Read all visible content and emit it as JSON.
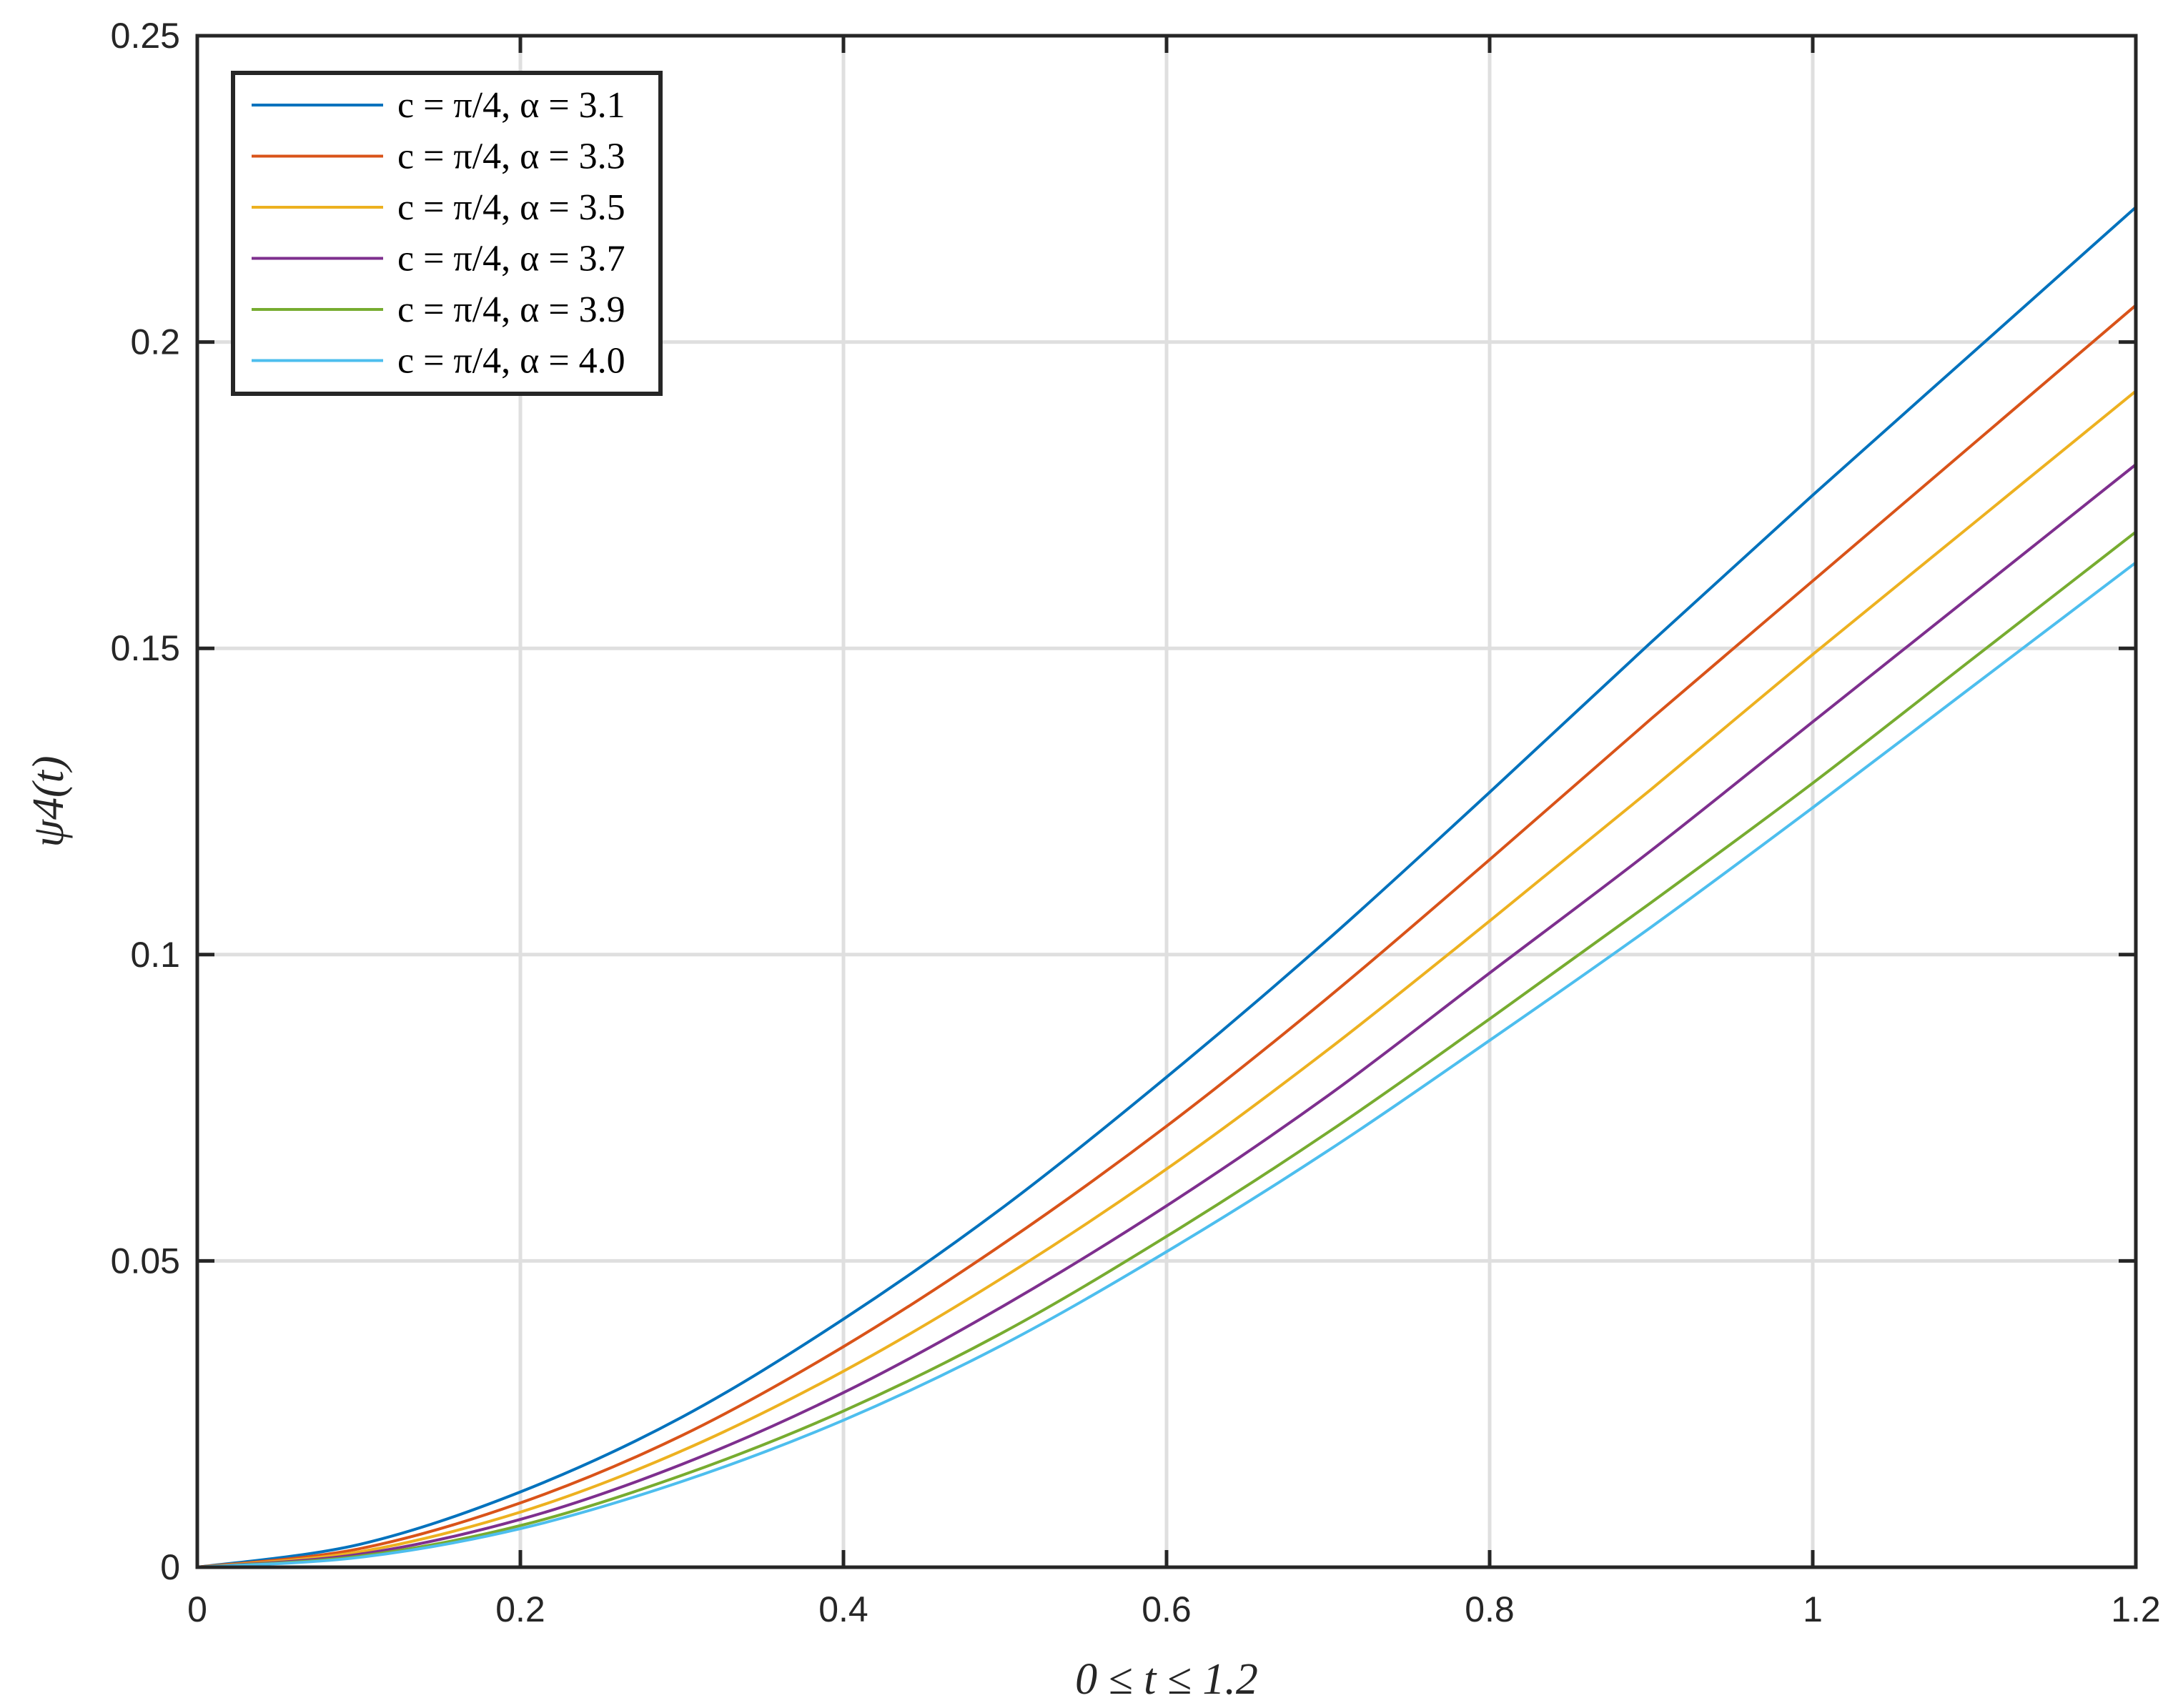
{
  "chart_data": {
    "type": "line",
    "xlabel": "0 ≤ t ≤ 1.2",
    "ylabel": "ψ4(t)",
    "xlim": [
      0,
      1.2
    ],
    "ylim": [
      0,
      0.25
    ],
    "x_ticks": [
      0,
      0.2,
      0.4,
      0.6,
      0.8,
      1.0,
      1.2
    ],
    "x_tick_labels": [
      "0",
      "0.2",
      "0.4",
      "0.6",
      "0.8",
      "1",
      "1.2"
    ],
    "y_ticks": [
      0,
      0.05,
      0.1,
      0.15,
      0.2,
      0.25
    ],
    "y_tick_labels": [
      "0",
      "0.05",
      "0.1",
      "0.15",
      "0.2",
      "0.25"
    ],
    "grid": true,
    "legend_position": "top-left",
    "x": [
      0,
      0.1,
      0.2,
      0.3,
      0.4,
      0.5,
      0.6,
      0.7,
      0.8,
      0.9,
      1.0,
      1.1,
      1.2
    ],
    "series": [
      {
        "name": "c = π/4, α = 3.1",
        "color": "#0072BD",
        "values": [
          0,
          0.0037,
          0.0123,
          0.0245,
          0.0405,
          0.059,
          0.08,
          0.1025,
          0.1265,
          0.151,
          0.175,
          0.1985,
          0.222
        ]
      },
      {
        "name": "c = π/4, α = 3.3",
        "color": "#D95319",
        "values": [
          0,
          0.003,
          0.0105,
          0.0215,
          0.036,
          0.053,
          0.072,
          0.093,
          0.1155,
          0.1385,
          0.161,
          0.1835,
          0.206
        ]
      },
      {
        "name": "c = π/4, α = 3.5",
        "color": "#EDB120",
        "values": [
          0,
          0.0025,
          0.009,
          0.019,
          0.032,
          0.0475,
          0.065,
          0.0845,
          0.1055,
          0.127,
          0.149,
          0.1705,
          0.192
        ]
      },
      {
        "name": "c = π/4, α = 3.7",
        "color": "#7E2F8E",
        "values": [
          0,
          0.0021,
          0.0078,
          0.0168,
          0.0285,
          0.0428,
          0.059,
          0.077,
          0.097,
          0.117,
          0.138,
          0.159,
          0.18
        ]
      },
      {
        "name": "c = π/4, α = 3.9",
        "color": "#77AC30",
        "values": [
          0,
          0.0018,
          0.0068,
          0.015,
          0.0255,
          0.0385,
          0.054,
          0.071,
          0.0895,
          0.1085,
          0.128,
          0.1485,
          0.169
        ]
      },
      {
        "name": "c = π/4, α = 4.0",
        "color": "#4DBEEE",
        "values": [
          0,
          0.0016,
          0.0063,
          0.014,
          0.024,
          0.0365,
          0.0515,
          0.068,
          0.086,
          0.1045,
          0.124,
          0.144,
          0.164
        ]
      }
    ]
  }
}
